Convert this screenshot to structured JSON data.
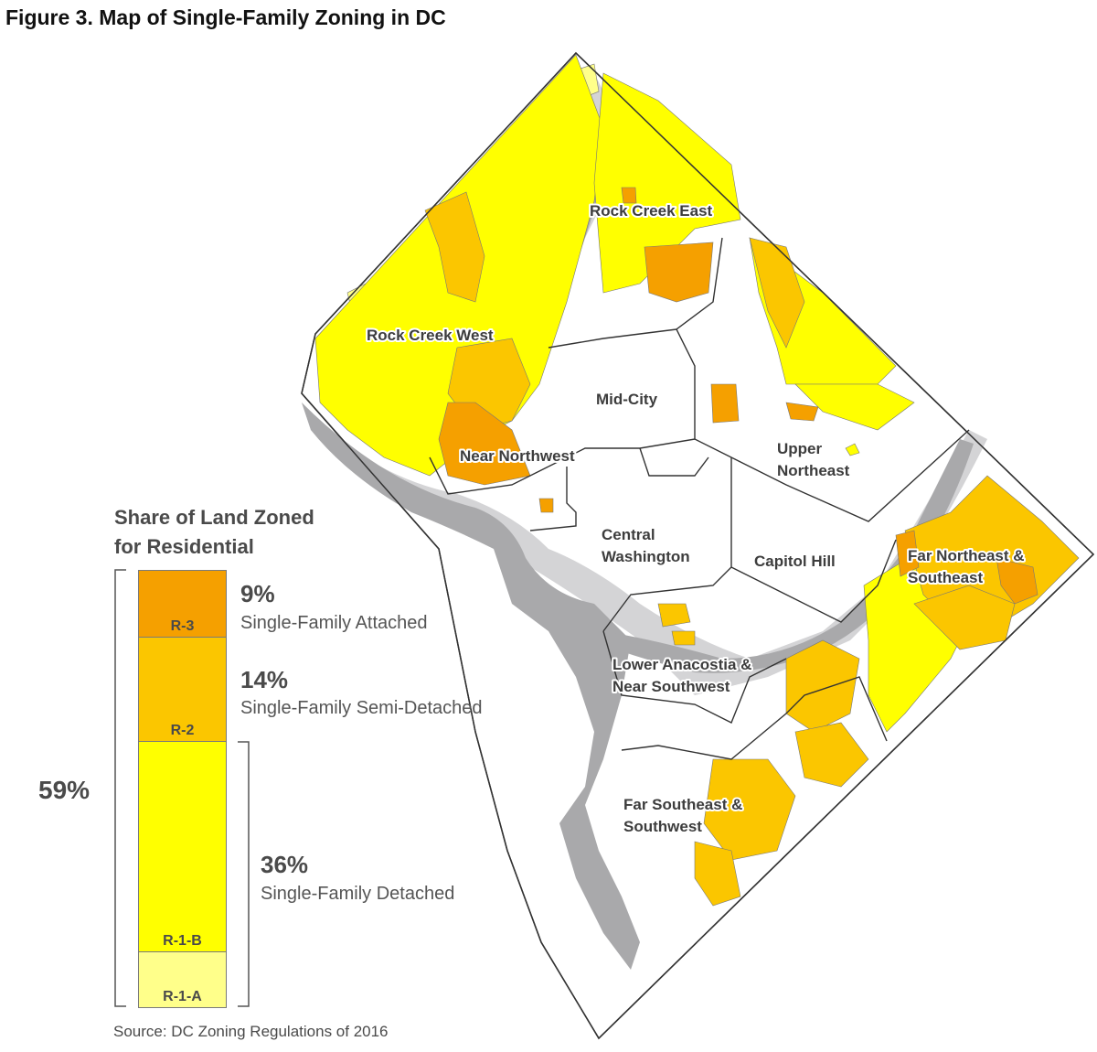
{
  "figure": {
    "title": "Figure 3. Map of Single-Family Zoning in DC"
  },
  "map": {
    "regions": [
      {
        "label_lines": [
          "Rock Creek East"
        ]
      },
      {
        "label_lines": [
          "Rock Creek West"
        ]
      },
      {
        "label_lines": [
          "Mid-City"
        ]
      },
      {
        "label_lines": [
          "Upper",
          "Northeast"
        ]
      },
      {
        "label_lines": [
          "Near Northwest"
        ]
      },
      {
        "label_lines": [
          "Central",
          "Washington"
        ]
      },
      {
        "label_lines": [
          "Capitol Hill"
        ]
      },
      {
        "label_lines": [
          "Far Northeast &",
          "Southeast"
        ]
      },
      {
        "label_lines": [
          "Lower Anacostia &",
          "Near Southwest"
        ]
      },
      {
        "label_lines": [
          "Far Southeast &",
          "Southwest"
        ]
      }
    ],
    "colors": {
      "r3": "#f5a000",
      "r2": "#fbc600",
      "r1b": "#ffff00",
      "r1a": "#ffff8a",
      "water_parks": "#a9a9ab",
      "light_gray": "#d4d4d6",
      "boundary": "#333333"
    }
  },
  "legend": {
    "title_lines": [
      "Share of Land Zoned",
      "for Residential"
    ],
    "total_pct": "59%",
    "segments": [
      {
        "code": "R-3",
        "pct": "9%",
        "description": "Single-Family Attached",
        "color": "#f5a000"
      },
      {
        "code": "R-2",
        "pct": "14%",
        "description": "Single-Family Semi-Detached",
        "color": "#fbc600"
      },
      {
        "code": "R-1-B",
        "pct": "36%",
        "description": "Single-Family Detached",
        "color": "#ffff00"
      },
      {
        "code": "R-1-A",
        "pct": "",
        "description": "",
        "color": "#ffff8a"
      }
    ]
  },
  "source": "Source: DC Zoning Regulations of 2016"
}
